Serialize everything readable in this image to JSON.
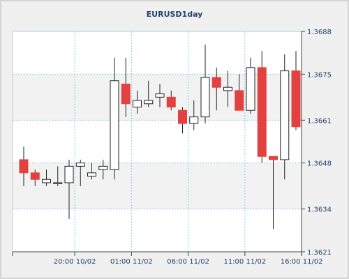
{
  "chart_data": {
    "type": "candlestick",
    "title": "EURUSD1day",
    "xlabel": "",
    "ylabel": "",
    "ylim": [
      1.3621,
      1.3688
    ],
    "y_ticks": [
      1.3621,
      1.3634,
      1.3648,
      1.3661,
      1.3675,
      1.3688
    ],
    "y_tick_labels": [
      "1.3621",
      "1.3634",
      "1.3648",
      "1.3661",
      "1.3675",
      "1.3688"
    ],
    "x_tick_labels": [
      "20:00 10/02",
      "01:00 11/02",
      "06:00 11/02",
      "11:00 11/02",
      "16:00 11/02"
    ],
    "x_tick_candle_index": [
      4.5,
      9.5,
      14.5,
      19.5,
      24.5
    ],
    "grid": true,
    "up_color": "#ffffff",
    "down_color": "#e34040",
    "candles": [
      {
        "open": 1.3649,
        "high": 1.3653,
        "low": 1.3641,
        "close": 1.3645
      },
      {
        "open": 1.3645,
        "high": 1.3646,
        "low": 1.3641,
        "close": 1.3643
      },
      {
        "open": 1.3642,
        "high": 1.3646,
        "low": 1.3641,
        "close": 1.3643
      },
      {
        "open": 1.3642,
        "high": 1.3647,
        "low": 1.3641,
        "close": 1.3642
      },
      {
        "open": 1.3642,
        "high": 1.3649,
        "low": 1.3631,
        "close": 1.3647
      },
      {
        "open": 1.3647,
        "high": 1.3649,
        "low": 1.3641,
        "close": 1.3648
      },
      {
        "open": 1.3644,
        "high": 1.3648,
        "low": 1.3643,
        "close": 1.3645
      },
      {
        "open": 1.3646,
        "high": 1.3649,
        "low": 1.3643,
        "close": 1.3647
      },
      {
        "open": 1.3646,
        "high": 1.368,
        "low": 1.3643,
        "close": 1.3673
      },
      {
        "open": 1.3672,
        "high": 1.368,
        "low": 1.3662,
        "close": 1.3666
      },
      {
        "open": 1.3665,
        "high": 1.367,
        "low": 1.3663,
        "close": 1.3667
      },
      {
        "open": 1.3666,
        "high": 1.3673,
        "low": 1.3665,
        "close": 1.3667
      },
      {
        "open": 1.3668,
        "high": 1.3672,
        "low": 1.3665,
        "close": 1.3669
      },
      {
        "open": 1.3668,
        "high": 1.367,
        "low": 1.3664,
        "close": 1.3665
      },
      {
        "open": 1.3664,
        "high": 1.3665,
        "low": 1.3657,
        "close": 1.366
      },
      {
        "open": 1.366,
        "high": 1.3667,
        "low": 1.3658,
        "close": 1.3662
      },
      {
        "open": 1.3662,
        "high": 1.3684,
        "low": 1.366,
        "close": 1.3674
      },
      {
        "open": 1.3674,
        "high": 1.3677,
        "low": 1.3664,
        "close": 1.3671
      },
      {
        "open": 1.367,
        "high": 1.3676,
        "low": 1.3665,
        "close": 1.3671
      },
      {
        "open": 1.367,
        "high": 1.3675,
        "low": 1.3664,
        "close": 1.3664
      },
      {
        "open": 1.3664,
        "high": 1.368,
        "low": 1.3663,
        "close": 1.3677
      },
      {
        "open": 1.3677,
        "high": 1.3682,
        "low": 1.3648,
        "close": 1.365
      },
      {
        "open": 1.365,
        "high": 1.365,
        "low": 1.3628,
        "close": 1.3649
      },
      {
        "open": 1.3649,
        "high": 1.3681,
        "low": 1.3643,
        "close": 1.3676
      },
      {
        "open": 1.3676,
        "high": 1.3682,
        "low": 1.3658,
        "close": 1.3659
      }
    ]
  }
}
